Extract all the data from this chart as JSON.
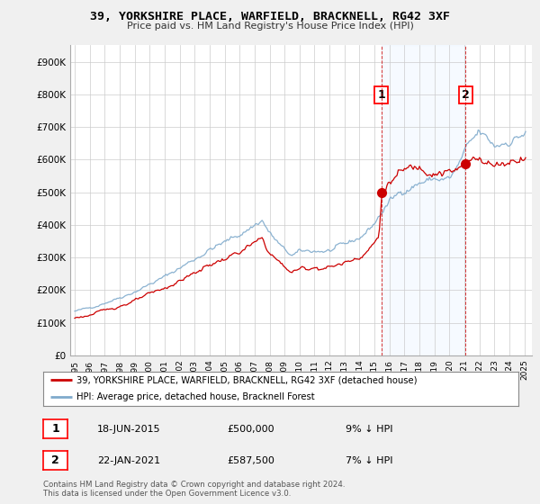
{
  "title": "39, YORKSHIRE PLACE, WARFIELD, BRACKNELL, RG42 3XF",
  "subtitle": "Price paid vs. HM Land Registry's House Price Index (HPI)",
  "legend_label_red": "39, YORKSHIRE PLACE, WARFIELD, BRACKNELL, RG42 3XF (detached house)",
  "legend_label_blue": "HPI: Average price, detached house, Bracknell Forest",
  "transaction1_label": "18-JUN-2015",
  "transaction1_price": "£500,000",
  "transaction1_hpi": "9% ↓ HPI",
  "transaction2_label": "22-JAN-2021",
  "transaction2_price": "£587,500",
  "transaction2_hpi": "7% ↓ HPI",
  "footer": "Contains HM Land Registry data © Crown copyright and database right 2024.\nThis data is licensed under the Open Government Licence v3.0.",
  "ylim": [
    0,
    950000
  ],
  "yticks": [
    0,
    100000,
    200000,
    300000,
    400000,
    500000,
    600000,
    700000,
    800000,
    900000
  ],
  "ytick_labels": [
    "£0",
    "£100K",
    "£200K",
    "£300K",
    "£400K",
    "£500K",
    "£600K",
    "£700K",
    "£800K",
    "£900K"
  ],
  "background_color": "#f0f0f0",
  "plot_bg_color": "#ffffff",
  "red_color": "#cc0000",
  "blue_color": "#7faacc",
  "shade_color": "#ddeeff",
  "transaction1_year": 2015.46,
  "transaction2_year": 2021.06,
  "xlim_left": 1994.7,
  "xlim_right": 2025.5
}
